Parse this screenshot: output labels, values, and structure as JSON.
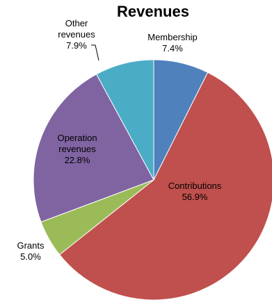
{
  "chart_data": {
    "type": "pie",
    "title": "Revenues",
    "slices": [
      {
        "label_lines": [
          "Membership"
        ],
        "pct_label": "7.4%",
        "value": 7.4,
        "color": "#4F81BD"
      },
      {
        "label_lines": [
          "Contributions"
        ],
        "pct_label": "56.9%",
        "value": 56.9,
        "color": "#C0504D"
      },
      {
        "label_lines": [
          "Grants"
        ],
        "pct_label": "5.0%",
        "value": 5.0,
        "color": "#9BBB59"
      },
      {
        "label_lines": [
          "Operation",
          "revenues"
        ],
        "pct_label": "22.8%",
        "value": 22.8,
        "color": "#8064A2"
      },
      {
        "label_lines": [
          "Other",
          "revenues"
        ],
        "pct_label": "7.9%",
        "value": 7.9,
        "color": "#4BACC6"
      }
    ],
    "legend": "none",
    "start_angle": "12 o'clock, clockwise"
  }
}
